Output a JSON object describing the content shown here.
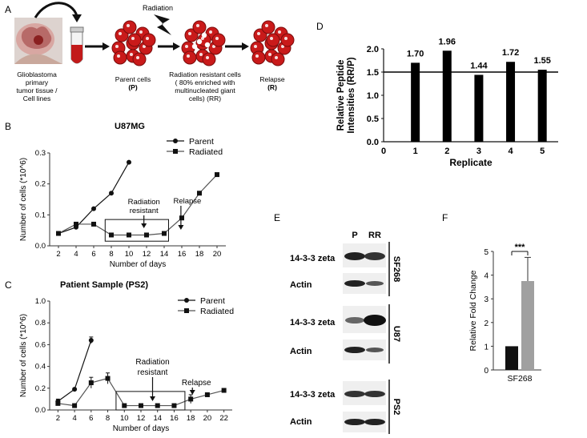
{
  "panel_a": {
    "letter": "A",
    "source_label_lines": [
      "Glioblastoma",
      "primary",
      "tumor tissue /",
      "Cell lines"
    ],
    "radiation_label": "Radiation",
    "parent_lines": [
      "Parent cells",
      "(P)"
    ],
    "rr_lines": [
      "Radiation resistant cells",
      "( 80% enriched with",
      "multinucleated giant",
      "cells) (RR)"
    ],
    "relapse_lines": [
      "Relapse",
      "(R)"
    ]
  },
  "panel_b": {
    "letter": "B",
    "note_radiation": [
      "Radiation",
      "resistant"
    ],
    "note_relapse": "Relapse"
  },
  "panel_c": {
    "letter": "C",
    "note_radiation": [
      "Radiation",
      "resistant"
    ],
    "note_relapse": "Relapse"
  },
  "panel_e": {
    "letter": "E",
    "lanes": [
      "P",
      "RR"
    ],
    "groups": [
      {
        "name": "SF268",
        "rows": [
          "14-3-3 zeta",
          "Actin"
        ]
      },
      {
        "name": "U87",
        "rows": [
          "14-3-3 zeta",
          "Actin"
        ]
      },
      {
        "name": "PS2",
        "rows": [
          "14-3-3 zeta",
          "Actin"
        ]
      }
    ]
  },
  "panel_f": {
    "letter": "F",
    "significance": "***"
  },
  "chart_data": [
    {
      "id": "B",
      "type": "line",
      "title": "U87MG",
      "xlabel": "Number of days",
      "ylabel": "Number of cells (*10^6)",
      "xticks": [
        2,
        4,
        6,
        8,
        10,
        12,
        14,
        16,
        18,
        20
      ],
      "yticks": [
        0.0,
        0.1,
        0.2,
        0.3
      ],
      "xlim": [
        1,
        21
      ],
      "ylim": [
        0,
        0.3
      ],
      "legend": "top-right",
      "series": [
        {
          "name": "Parent",
          "marker": "circle",
          "x": [
            2,
            4,
            6,
            8,
            10
          ],
          "y": [
            0.04,
            0.06,
            0.12,
            0.17,
            0.27
          ]
        },
        {
          "name": "Radiated",
          "marker": "square",
          "x": [
            2,
            4,
            6,
            8,
            10,
            12,
            14,
            16,
            18,
            20
          ],
          "y": [
            0.04,
            0.07,
            0.07,
            0.035,
            0.035,
            0.035,
            0.04,
            0.09,
            0.17,
            0.23
          ]
        }
      ]
    },
    {
      "id": "C",
      "type": "line",
      "title": "Patient Sample (PS2)",
      "xlabel": "Number of days",
      "ylabel": "Number of cells (*10^6)",
      "xticks": [
        2,
        4,
        6,
        8,
        10,
        12,
        14,
        16,
        18,
        20,
        22
      ],
      "yticks": [
        0.0,
        0.2,
        0.4,
        0.6,
        0.8,
        1.0
      ],
      "xlim": [
        1,
        23
      ],
      "ylim": [
        0,
        1.0
      ],
      "legend": "top-right",
      "series": [
        {
          "name": "Parent",
          "marker": "circle",
          "x": [
            2,
            4,
            6
          ],
          "y": [
            0.08,
            0.19,
            0.64
          ],
          "err": [
            0.02,
            0.01,
            0.03
          ]
        },
        {
          "name": "Radiated",
          "marker": "square",
          "x": [
            2,
            4,
            6,
            8,
            10,
            12,
            14,
            16,
            18,
            20,
            22
          ],
          "y": [
            0.06,
            0.04,
            0.25,
            0.29,
            0.04,
            0.04,
            0.04,
            0.04,
            0.1,
            0.14,
            0.18
          ],
          "err": [
            0.01,
            0.01,
            0.05,
            0.05,
            0.01,
            0.01,
            0.01,
            0.01,
            0.04,
            0.01,
            0.01
          ]
        }
      ]
    },
    {
      "id": "D",
      "type": "bar",
      "xlabel": "Replicate",
      "ylabel": "Relative Peptide Intensities (RR/P)",
      "xticks": [
        0,
        1,
        2,
        3,
        4,
        5
      ],
      "yticks": [
        0.0,
        0.5,
        1.0,
        1.5,
        2.0
      ],
      "xlim": [
        0,
        5.5
      ],
      "ylim": [
        0,
        2.0
      ],
      "reference_line": 1.5,
      "categories": [
        1,
        2,
        3,
        4,
        5
      ],
      "values": [
        1.7,
        1.96,
        1.44,
        1.72,
        1.55
      ],
      "data_labels": [
        "1.70",
        "1.96",
        "1.44",
        "1.72",
        "1.55"
      ]
    },
    {
      "id": "F",
      "type": "bar",
      "xlabel": "SF268",
      "ylabel": "Relative Fold Change",
      "yticks": [
        0,
        1,
        2,
        3,
        4,
        5
      ],
      "ylim": [
        0,
        5
      ],
      "series": [
        {
          "value": 1.0,
          "color": "#111111"
        },
        {
          "value": 3.75,
          "err": 1.0,
          "color": "#a0a0a0"
        }
      ]
    }
  ]
}
